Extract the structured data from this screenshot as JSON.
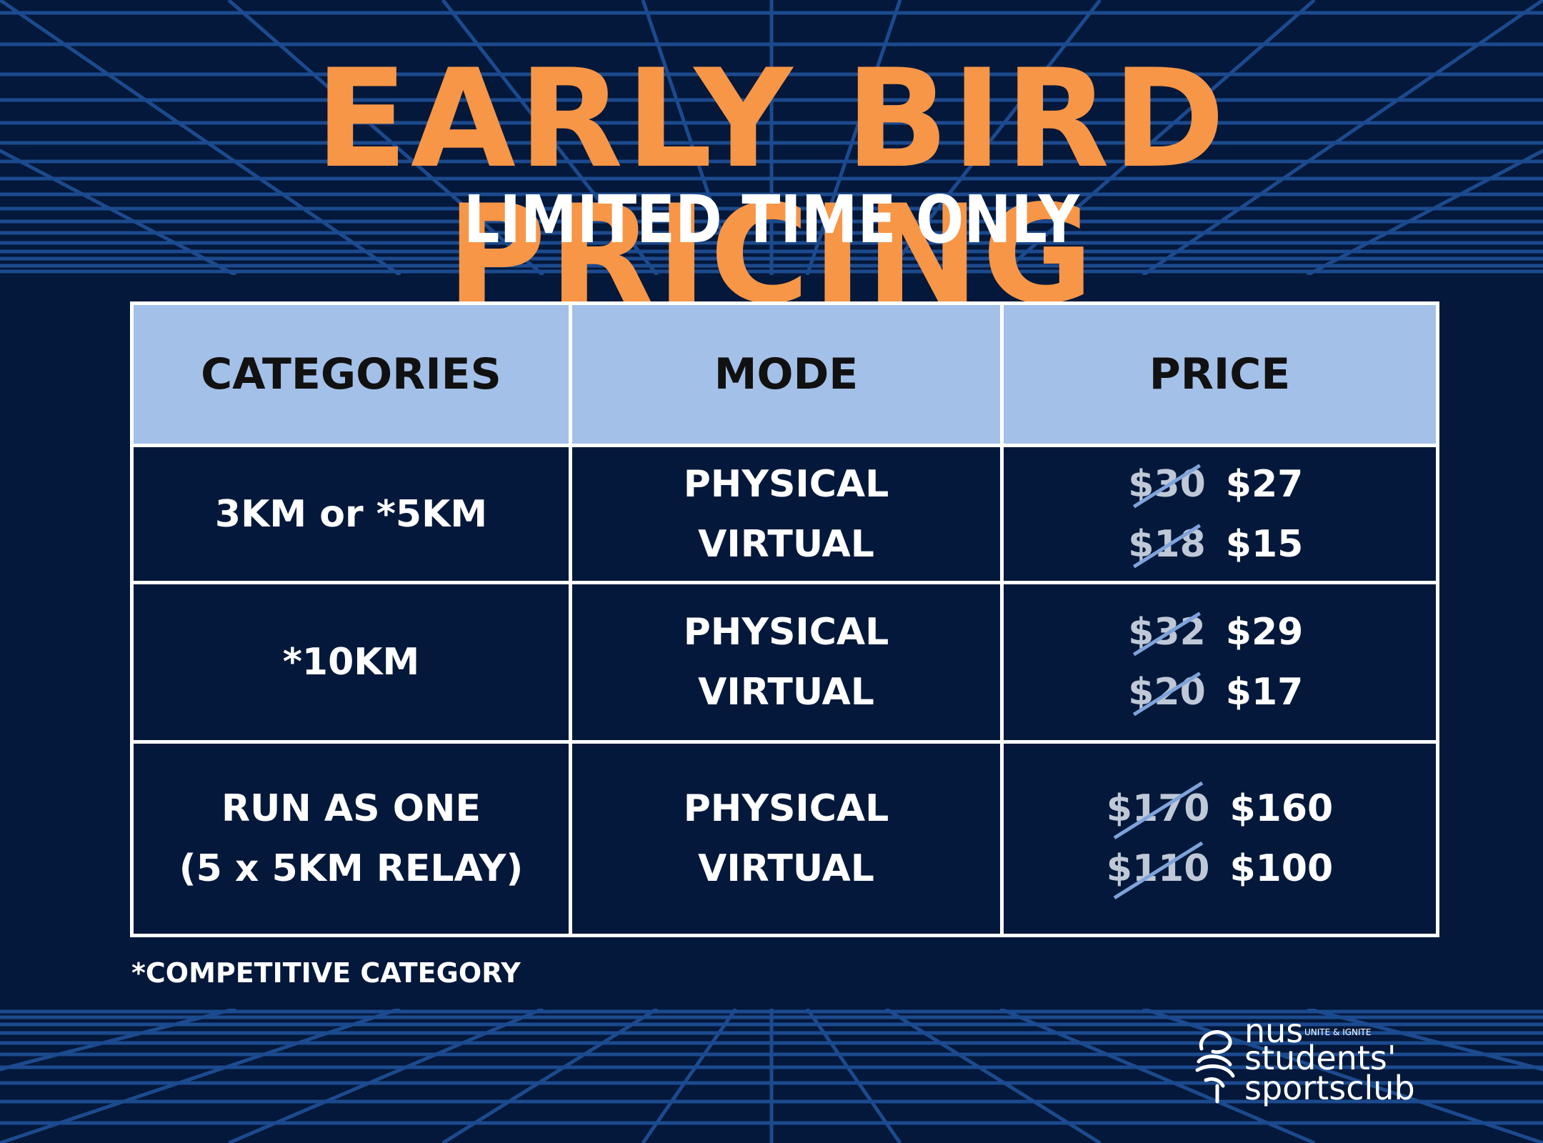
{
  "header": {
    "title": "EARLY BIRD PRICING",
    "subtitle": "LIMITED TIME ONLY"
  },
  "table": {
    "headers": [
      "CATEGORIES",
      "MODE",
      "PRICE"
    ],
    "rows": [
      {
        "category_lines": [
          "3KM or *5KM"
        ],
        "modes": [
          "PHYSICAL",
          "VIRTUAL"
        ],
        "prices": [
          {
            "old": "$30",
            "new": "$27"
          },
          {
            "old": "$18",
            "new": "$15"
          }
        ]
      },
      {
        "category_lines": [
          "*10KM"
        ],
        "modes": [
          "PHYSICAL",
          "VIRTUAL"
        ],
        "prices": [
          {
            "old": "$32",
            "new": "$29"
          },
          {
            "old": "$20",
            "new": "$17"
          }
        ]
      },
      {
        "category_lines": [
          "RUN AS ONE",
          "(5 x 5KM RELAY)"
        ],
        "modes": [
          "PHYSICAL",
          "VIRTUAL"
        ],
        "prices": [
          {
            "old": "$170",
            "new": "$160"
          },
          {
            "old": "$110",
            "new": "$100"
          }
        ]
      }
    ]
  },
  "footnote": "*COMPETITIVE CATEGORY",
  "logo": {
    "line1": "nus",
    "tagline": "UNITE & IGNITE",
    "line2": "students'",
    "line3": "sportsclub",
    "icon": "nus-ssc-emblem-icon"
  },
  "colors": {
    "background": "#03183a",
    "title": "#f79646",
    "header_fill": "#a3c0e9",
    "grid": "#1c4a8e",
    "strike": "#7ea3db"
  }
}
